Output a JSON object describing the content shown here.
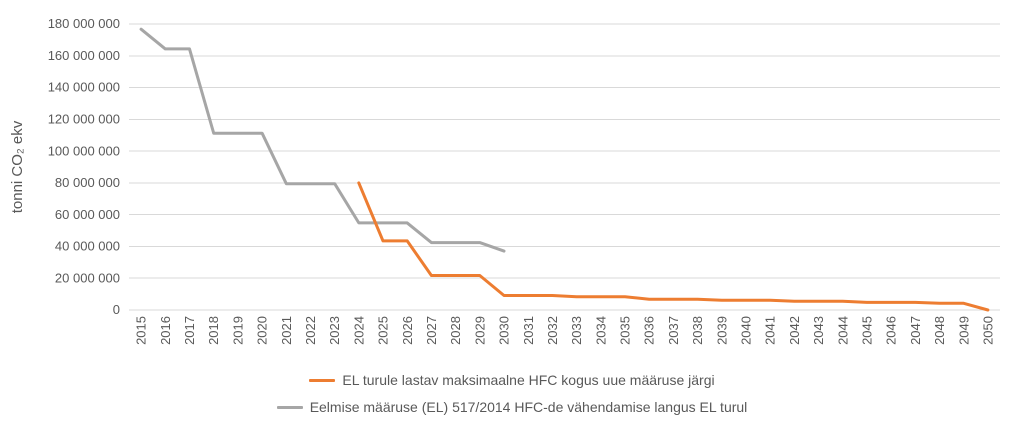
{
  "chart_data": {
    "type": "line",
    "title": "",
    "ylabel": "tonni CO₂ ekv",
    "xlabel": "",
    "x": [
      2015,
      2016,
      2017,
      2018,
      2019,
      2020,
      2021,
      2022,
      2023,
      2024,
      2025,
      2026,
      2027,
      2028,
      2029,
      2030,
      2031,
      2032,
      2033,
      2034,
      2035,
      2036,
      2037,
      2038,
      2039,
      2040,
      2041,
      2042,
      2043,
      2044,
      2045,
      2046,
      2047,
      2048,
      2049,
      2050
    ],
    "ylim": [
      0,
      180000000
    ],
    "ytick_step": 20000000,
    "ytick_labels": [
      "0",
      "20 000 000",
      "40 000 000",
      "60 000 000",
      "80 000 000",
      "100 000 000",
      "120 000 000",
      "140 000 000",
      "160 000 000",
      "180 000 000"
    ],
    "grid": true,
    "legend_position": "bottom",
    "series": [
      {
        "name": "EL turule lastav maksimaalne HFC kogus uue määruse järgi",
        "color": "#ED7D31",
        "values": [
          null,
          null,
          null,
          null,
          null,
          null,
          null,
          null,
          null,
          80000000,
          43500000,
          43500000,
          21700000,
          21700000,
          21700000,
          9100000,
          9100000,
          9100000,
          8400000,
          8400000,
          8400000,
          6800000,
          6800000,
          6800000,
          6100000,
          6100000,
          6100000,
          5500000,
          5500000,
          5500000,
          4800000,
          4800000,
          4800000,
          4200000,
          4200000,
          0
        ]
      },
      {
        "name": "Eelmise määruse (EL) 517/2014 HFC-de vähendamise langus EL turul",
        "color": "#A6A6A6",
        "values": [
          176700000,
          164300000,
          164300000,
          111300000,
          111300000,
          111300000,
          79500000,
          79500000,
          79500000,
          54800000,
          54800000,
          54800000,
          42400000,
          42400000,
          42400000,
          37100000,
          null,
          null,
          null,
          null,
          null,
          null,
          null,
          null,
          null,
          null,
          null,
          null,
          null,
          null,
          null,
          null,
          null,
          null,
          null,
          null
        ]
      }
    ]
  },
  "colors": {
    "axis_text": "#595959",
    "gridline": "#D9D9D9",
    "background": "#FFFFFF"
  }
}
